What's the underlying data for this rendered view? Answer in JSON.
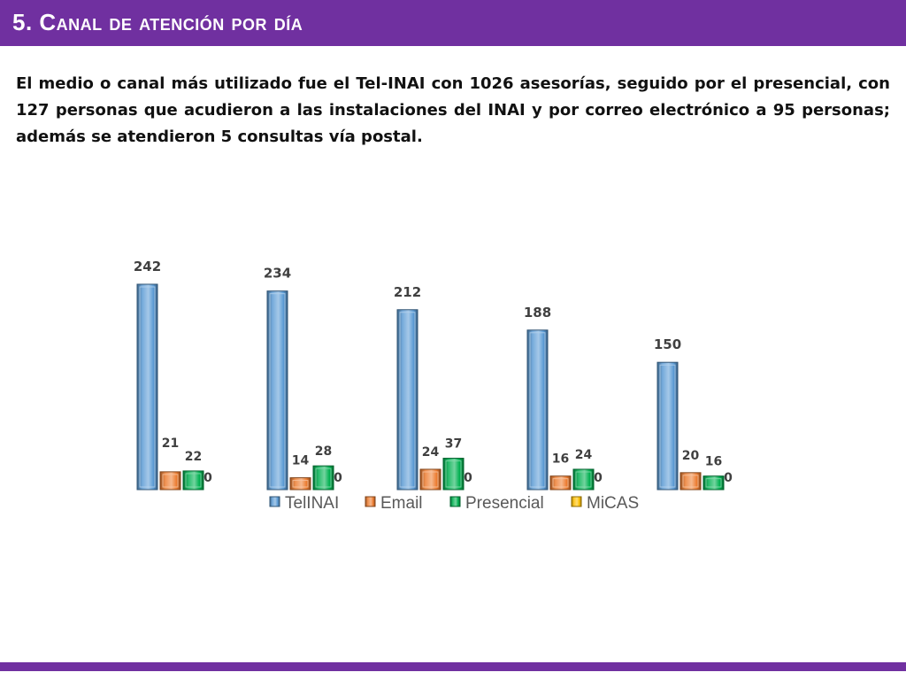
{
  "header": {
    "title": "5. Canal de atención por día",
    "color": "#7030a0"
  },
  "body_text": "El medio o canal más utilizado fue el Tel-INAI con 1026 asesorías, seguido por el presencial, con 127 personas que acudieron a las instalaciones del INAI y por correo electrónico a 95 personas; además se atendieron 5 consultas vía postal.",
  "chart_data": {
    "type": "bar",
    "style": "3d-beveled clustered columns",
    "categories": [
      "",
      "",
      "",
      "",
      ""
    ],
    "series": [
      {
        "name": "TelINAI",
        "color": "#5b9bd5",
        "values": [
          242,
          234,
          212,
          188,
          150
        ]
      },
      {
        "name": "Email",
        "color": "#ed7d31",
        "values": [
          21,
          14,
          24,
          16,
          20
        ]
      },
      {
        "name": "Presencial",
        "color": "#00b050",
        "values": [
          22,
          28,
          37,
          24,
          16
        ]
      },
      {
        "name": "MiCAS",
        "color": "#ffc000",
        "values": [
          0,
          0,
          0,
          0,
          0
        ]
      }
    ],
    "data_labels": true,
    "legend": "bottom",
    "gridlines": false,
    "axes_visible": false,
    "ylim": [
      0,
      242
    ]
  }
}
